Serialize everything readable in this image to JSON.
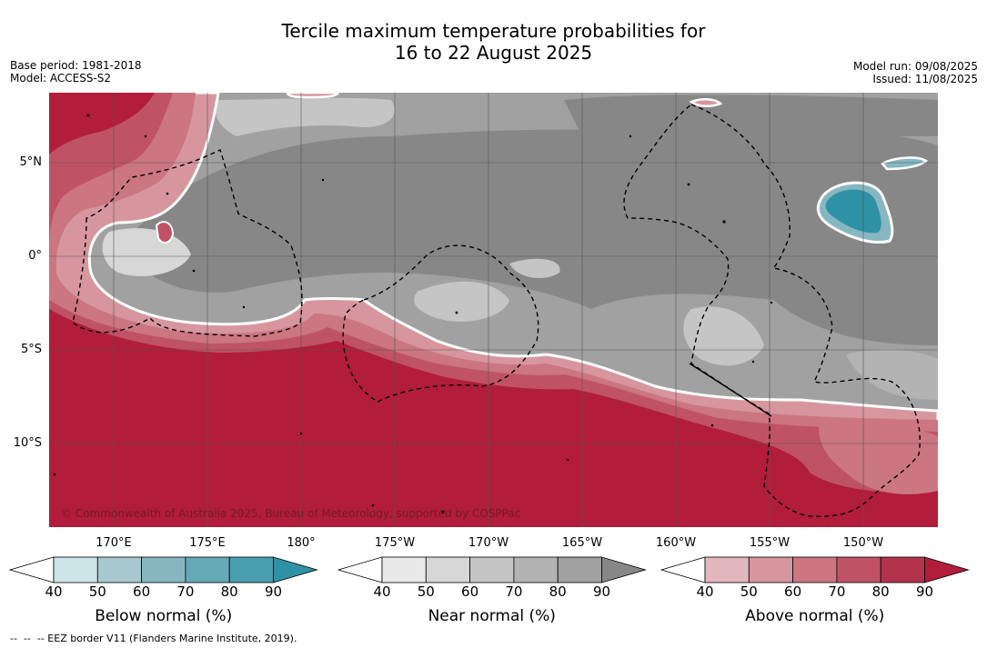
{
  "header": {
    "title_line1": "Tercile maximum temperature probabilities for",
    "title_line2": "16 to 22 August 2025",
    "base_period": "Base period: 1981-2018",
    "model": "Model: ACCESS-S2",
    "model_run": "Model run: 09/08/2025",
    "issued": "Issued: 11/08/2025"
  },
  "map": {
    "region": "Central Pacific",
    "lat_labels": [
      "5°N",
      "0°",
      "5°S",
      "10°S"
    ],
    "lon_labels": [
      "170°E",
      "175°E",
      "180°",
      "175°W",
      "170°W",
      "165°W",
      "160°W",
      "155°W",
      "150°W"
    ],
    "copyright": "© Commonwealth of Australia 2025, Bureau of Meteorology, supported by COSPPac",
    "layers": {
      "above_normal": "south and far west: darkest red (80-90%) across the south",
      "near_normal": "central and north: grey (60-90%)",
      "below_normal": "small patch near 2°N 150°W: teal (70-90%)"
    }
  },
  "legends": [
    {
      "title": "Below normal (%)",
      "ticks": [
        "40",
        "50",
        "60",
        "70",
        "80",
        "90"
      ],
      "colors": [
        "#ffffff",
        "#cde4e9",
        "#a7c8ce",
        "#86b7c1",
        "#65a9b6",
        "#4a9fae",
        "#2f91a5"
      ]
    },
    {
      "title": "Near normal (%)",
      "ticks": [
        "40",
        "50",
        "60",
        "70",
        "80",
        "90"
      ],
      "colors": [
        "#ffffff",
        "#e8e8e8",
        "#d7d7d7",
        "#c5c5c5",
        "#b3b3b3",
        "#a1a1a1",
        "#878787"
      ]
    },
    {
      "title": "Above normal (%)",
      "ticks": [
        "40",
        "50",
        "60",
        "70",
        "80",
        "90"
      ],
      "colors": [
        "#ffffff",
        "#e2b7bd",
        "#d7969e",
        "#cb7681",
        "#bf5365",
        "#b3334c",
        "#b11d3a"
      ]
    }
  ],
  "footer": "--  --  -- EEZ border V11 (Flanders Marine Institute, 2019)."
}
